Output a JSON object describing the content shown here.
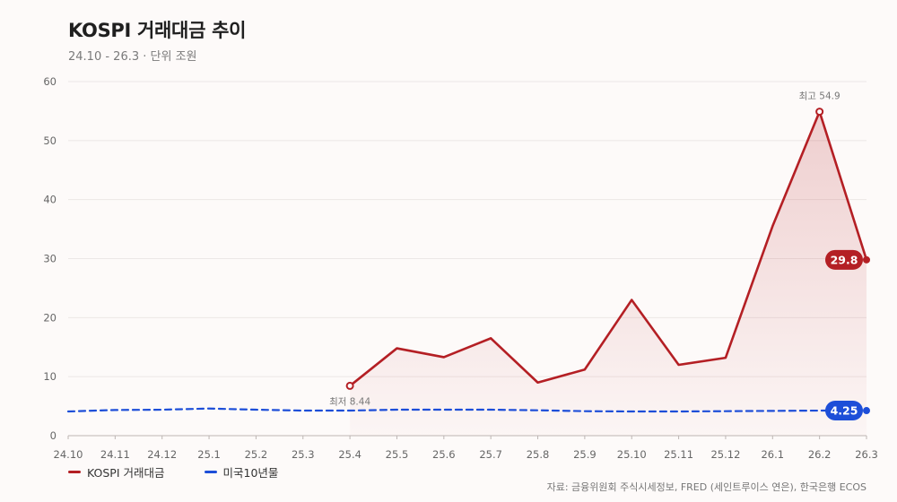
{
  "title": "KOSPI 거래대금 추이",
  "subtitle": "24.10 - 26.3 · 단위 조원",
  "source": "자료: 금융위원회 주식시세정보, FRED (세인트루이스 연은), 한국은행 ECOS",
  "colors": {
    "kospi": "#b41f24",
    "us10y": "#1d4ed8",
    "grid": "#ece7e6",
    "axis_text": "#666666"
  },
  "chart_data": {
    "type": "line",
    "title": "KOSPI 거래대금 추이",
    "x": [
      "24.10",
      "24.11",
      "24.12",
      "25.1",
      "25.2",
      "25.3",
      "25.4",
      "25.5",
      "25.6",
      "25.7",
      "25.8",
      "25.9",
      "25.10",
      "25.11",
      "25.12",
      "26.1",
      "26.2",
      "26.3"
    ],
    "ylim": [
      0,
      60
    ],
    "yticks": [
      0,
      10,
      20,
      30,
      40,
      50,
      60
    ],
    "grid": true,
    "legend_position": "bottom-left",
    "series": [
      {
        "name": "KOSPI 거래대금",
        "style": "solid-area",
        "values": [
          null,
          null,
          null,
          null,
          null,
          null,
          8.44,
          14.8,
          13.3,
          16.5,
          9.0,
          11.2,
          23.0,
          12.0,
          13.2,
          35.5,
          54.9,
          29.8
        ]
      },
      {
        "name": "미국10년물",
        "style": "dashed",
        "values": [
          4.1,
          4.35,
          4.4,
          4.6,
          4.4,
          4.25,
          4.25,
          4.4,
          4.4,
          4.4,
          4.3,
          4.15,
          4.1,
          4.1,
          4.15,
          4.2,
          4.25,
          4.25
        ]
      }
    ],
    "annotations": {
      "min_label": "최저 8.44",
      "max_label": "최고 54.9",
      "kospi_last_label": "29.8",
      "us10y_last_label": "4.25"
    }
  }
}
